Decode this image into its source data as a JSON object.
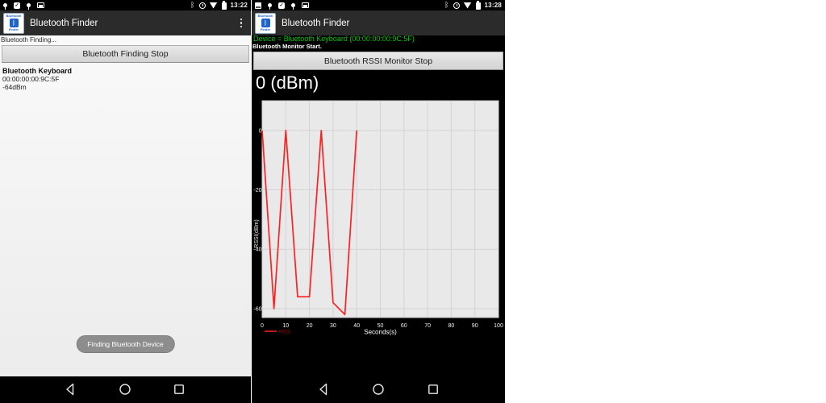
{
  "app": {
    "title": "Bluetooth Finder",
    "logo": {
      "line1": "Bluetooth",
      "line2": "Finder"
    }
  },
  "icons": {
    "bluetooth_glyph": "ᛒ",
    "check_glyph": "✓"
  },
  "left_screen": {
    "status_time": "13:22",
    "finding_status": "Bluetooth Finding...",
    "stop_button": "Bluetooth Finding Stop",
    "device": {
      "name": "Bluetooth Keyboard",
      "address": "00:00:00:00:9C:5F",
      "rssi": "-64dBm"
    },
    "toast": "Finding Bluetooth Device"
  },
  "right_screen": {
    "status_time": "13:28",
    "device_line": "Device = Bluetooth Keyboard (00:00:00:00:9C:5F)",
    "monitor_status": "Bluetooth Monitor Start.",
    "stop_button": "Bluetooth RSSI Monitor Stop"
  },
  "colors": {
    "accent_green": "#00cc00",
    "series_red": "#ff2020",
    "legend_red": "#aa0000",
    "appbar_gray": "#2b2b2b",
    "plot_bg": "#e9e9e9",
    "grid_line": "#d3d3d3",
    "tick_text": "#f2f2f2"
  },
  "chart_data": {
    "type": "line",
    "title": "0 (dBm)",
    "xlabel": "Seconds(s)",
    "ylabel": "RSSI(dBm)",
    "xlim": [
      0,
      100
    ],
    "ylim": [
      10,
      -63
    ],
    "x_ticks": [
      0,
      10,
      20,
      30,
      40,
      50,
      60,
      70,
      80,
      90,
      100
    ],
    "y_ticks": [
      0,
      -20,
      -40,
      -60
    ],
    "grid": true,
    "legend": {
      "position": "bottom-left",
      "entries": [
        {
          "label": "RSSI",
          "color": "#aa0000"
        }
      ]
    },
    "series": [
      {
        "name": "RSSI",
        "color": "#ff2020",
        "points": [
          [
            0,
            0
          ],
          [
            5,
            -60
          ],
          [
            10,
            0
          ],
          [
            15,
            -56
          ],
          [
            20,
            -56
          ],
          [
            25,
            0
          ],
          [
            30,
            -58
          ],
          [
            35,
            -62
          ],
          [
            40,
            0
          ]
        ]
      }
    ]
  }
}
